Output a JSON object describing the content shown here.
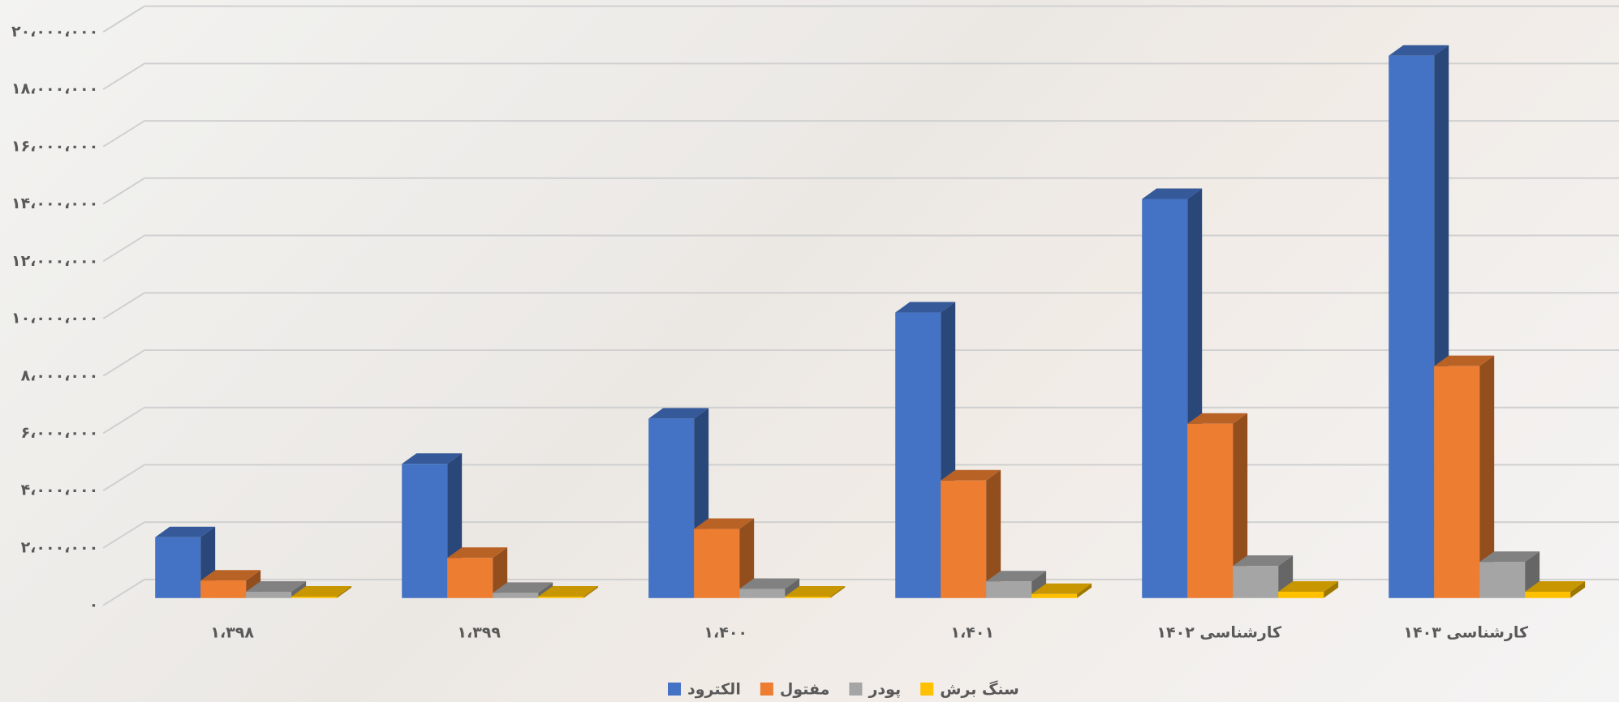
{
  "chart_data": {
    "type": "bar3d",
    "categories": [
      "۱،۳۹۸",
      "۱،۳۹۹",
      "۱،۴۰۰",
      "۱،۴۰۱",
      "کارشناسی ۱۴۰۲",
      "کارشناسی ۱۴۰۳"
    ],
    "series": [
      {
        "name": "الکترود",
        "color": "#4472c4",
        "values": [
          2120000,
          4680000,
          6260000,
          9960000,
          13920000,
          18920000
        ]
      },
      {
        "name": "مفتول",
        "color": "#ed7d31",
        "values": [
          610000,
          1400000,
          2410000,
          4100000,
          6080000,
          8090000
        ]
      },
      {
        "name": "پودر",
        "color": "#a5a5a5",
        "values": [
          220000,
          180000,
          320000,
          580000,
          1120000,
          1260000
        ]
      },
      {
        "name": "سنگ برش",
        "color": "#ffc000",
        "values": [
          50000,
          50000,
          50000,
          140000,
          220000,
          220000
        ]
      }
    ],
    "ylim": [
      0,
      20000000
    ],
    "yticks": [
      {
        "value": 0,
        "label": "۰"
      },
      {
        "value": 2000000,
        "label": "۲،۰۰۰،۰۰۰"
      },
      {
        "value": 4000000,
        "label": "۴،۰۰۰،۰۰۰"
      },
      {
        "value": 6000000,
        "label": "۶،۰۰۰،۰۰۰"
      },
      {
        "value": 8000000,
        "label": "۸،۰۰۰،۰۰۰"
      },
      {
        "value": 10000000,
        "label": "۱۰،۰۰۰،۰۰۰"
      },
      {
        "value": 12000000,
        "label": "۱۲،۰۰۰،۰۰۰"
      },
      {
        "value": 14000000,
        "label": "۱۴،۰۰۰،۰۰۰"
      },
      {
        "value": 16000000,
        "label": "۱۶،۰۰۰،۰۰۰"
      },
      {
        "value": 18000000,
        "label": "۱۸،۰۰۰،۰۰۰"
      },
      {
        "value": 20000000,
        "label": "۲۰،۰۰۰،۰۰۰"
      }
    ],
    "grid": true,
    "legend": "bottom"
  }
}
